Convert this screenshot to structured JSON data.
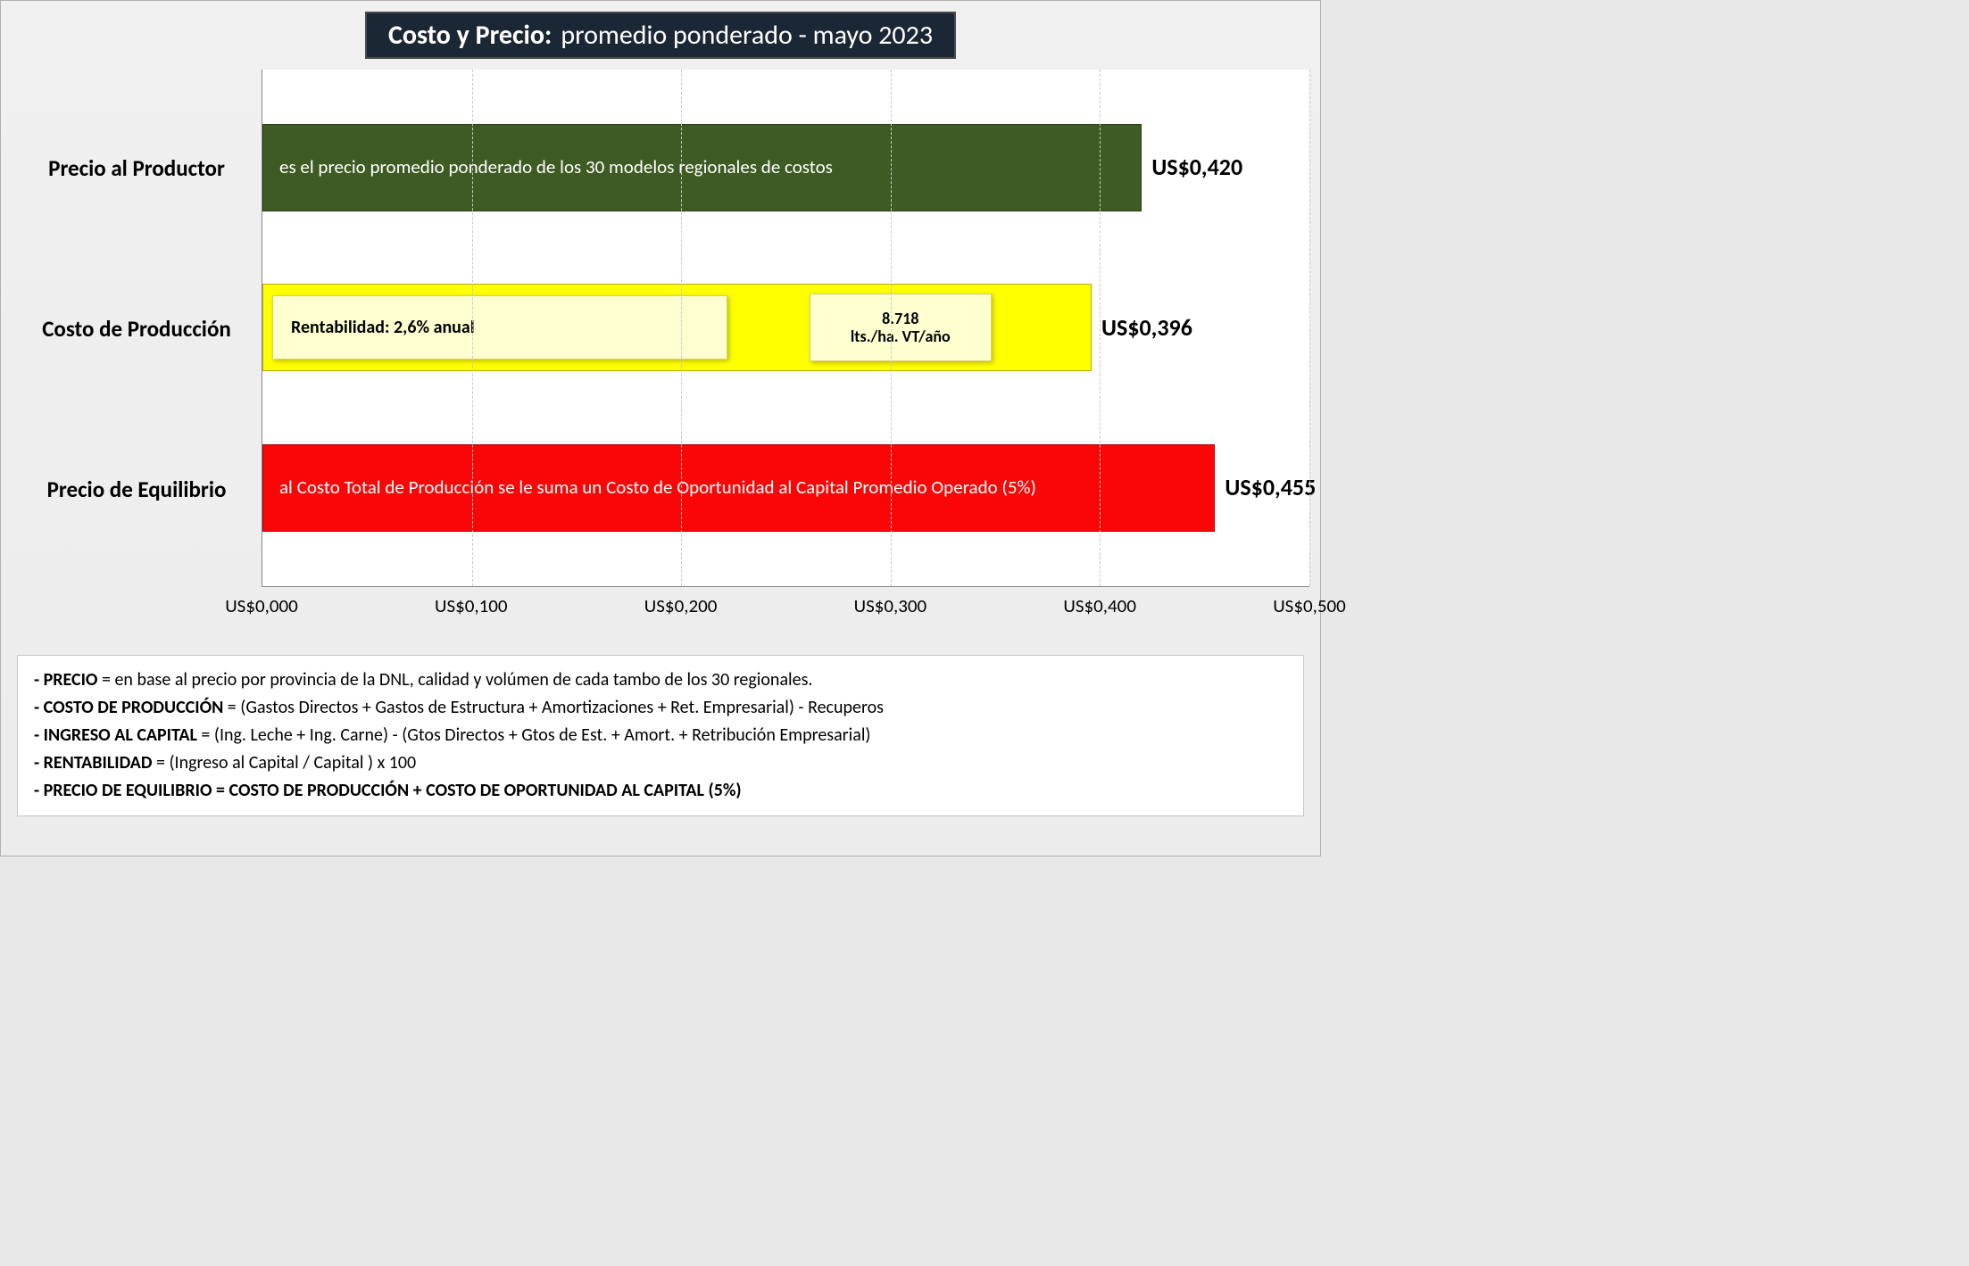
{
  "title": {
    "bold": "Costo  y Precio:",
    "rest": "promedio ponderado - mayo 2023"
  },
  "colors": {
    "page_bg": "#f0f0f0",
    "title_bg": "#1c2735",
    "title_fg": "#ffffff",
    "plot_bg": "#ffffff",
    "grid": "#c8c8c8",
    "bar_green": "#3e5b23",
    "bar_yellow": "#ffff00",
    "bar_red": "#fb0606",
    "callout_bg": "#ffffd0",
    "text": "#000000"
  },
  "typography": {
    "family": "Calibri",
    "title_pt": 30,
    "axis_label_pt": 25,
    "bar_text_pt": 21,
    "value_pt": 26,
    "tick_pt": 21,
    "footer_pt": 20
  },
  "chart": {
    "type": "bar-horizontal",
    "xmin": 0.0,
    "xmax": 0.5,
    "xtick_step": 0.1,
    "xticks": [
      "US$0,000",
      "US$0,100",
      "US$0,200",
      "US$0,300",
      "US$0,400",
      "US$0,500"
    ],
    "bars": [
      {
        "key": "precio-productor",
        "label": "Precio al Productor",
        "value": 0.42,
        "value_text": "US$0,420",
        "color": "#3e5b23",
        "text_color": "#ffffff",
        "desc": "es el precio promedio ponderado de los 30 modelos regionales de costos"
      },
      {
        "key": "costo-produccion",
        "label": "Costo de Producción",
        "value": 0.396,
        "value_text": "US$0,396",
        "color": "#ffff00",
        "text_color": "#000000",
        "callouts": {
          "rentabilidad": "Rentabilidad: 2,6% anual",
          "rentabilidad_width_frac": 0.55,
          "lts_line1": "8.718",
          "lts_line2": "lts./ha. VT/año",
          "lts_left_frac": 0.66,
          "lts_width_frac": 0.22
        }
      },
      {
        "key": "precio-equilibrio",
        "label": "Precio de Equilibrio",
        "value": 0.455,
        "value_text": "US$0,455",
        "color": "#fb0606",
        "text_color": "#ffffff",
        "desc": "al Costo Total de Producción se le suma un Costo de Oportunidad al Capital Promedio Operado (5%)"
      }
    ]
  },
  "footer": [
    {
      "b": "- PRECIO",
      "t": " = en base al precio por provincia de la DNL, calidad y volúmen de cada tambo de los 30 regionales."
    },
    {
      "b": "- COSTO DE PRODUCCIÓN",
      "t": " = (Gastos Directos + Gastos de Estructura + Amortizaciones + Ret. Empresarial) - Recuperos"
    },
    {
      "b": "- INGRESO AL CAPITAL",
      "t": " = (Ing. Leche + Ing. Carne) - (Gtos Directos + Gtos de Est. + Amort. + Retribución Empresarial)"
    },
    {
      "b": "- RENTABILIDAD",
      "t": " = (Ingreso al Capital / Capital ) x 100"
    },
    {
      "b": "- PRECIO DE EQUILIBRIO = COSTO DE PRODUCCIÓN + COSTO DE OPORTUNIDAD AL CAPITAL (5%)",
      "t": ""
    }
  ]
}
